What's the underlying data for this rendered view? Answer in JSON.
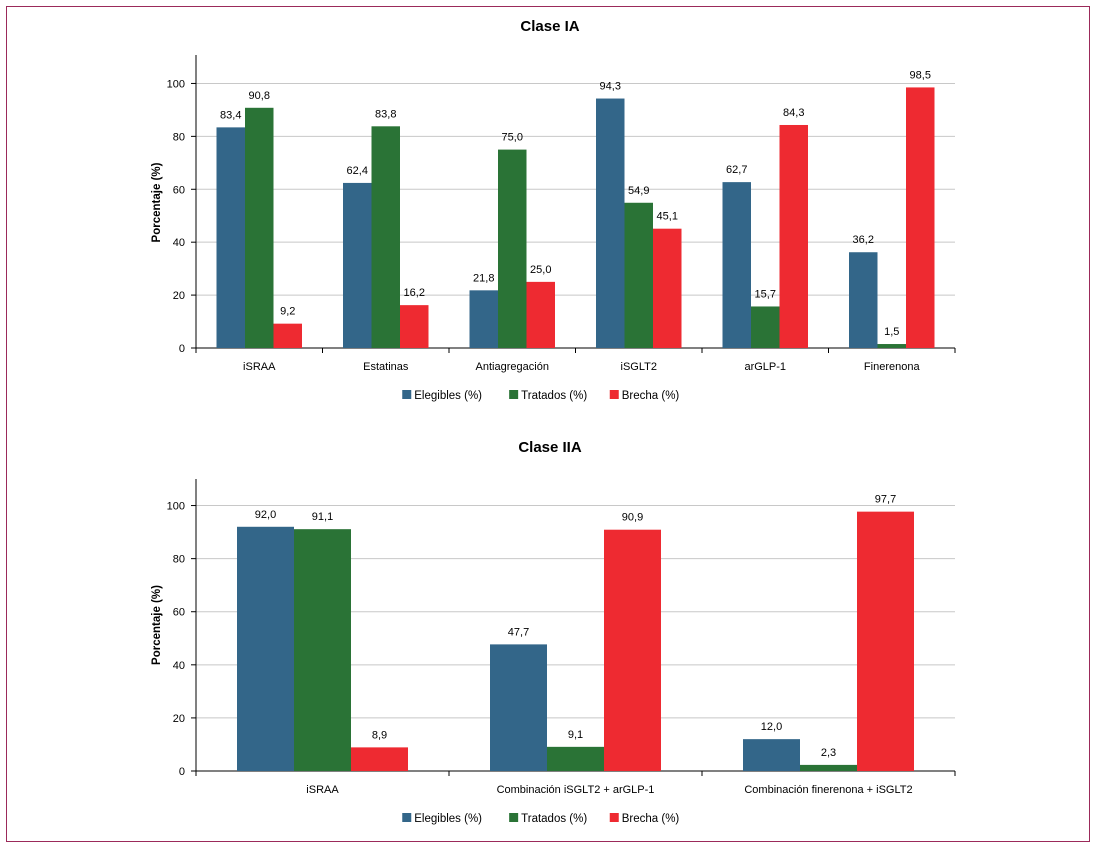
{
  "chart_data": [
    {
      "type": "bar",
      "title": "Clase IA",
      "ylabel": "Porcentaje (%)",
      "xlabel": "",
      "ylim": [
        0,
        110
      ],
      "yticks": [
        0,
        20,
        40,
        60,
        80,
        100
      ],
      "grid": true,
      "legend_position": "bottom",
      "categories": [
        "iSRAA",
        "Estatinas",
        "Antiagregación",
        "iSGLT2",
        "arGLP-1",
        "Finerenona"
      ],
      "series": [
        {
          "name": "Elegibles (%)",
          "color": "#336689",
          "values": [
            83.4,
            62.4,
            21.8,
            94.3,
            62.7,
            36.2
          ],
          "labels": [
            "83,4",
            "62,4",
            "21,8",
            "94,3",
            "62,7",
            "36,2"
          ]
        },
        {
          "name": "Tratados (%)",
          "color": "#2a7336",
          "values": [
            90.8,
            83.8,
            75.0,
            54.9,
            15.7,
            1.5
          ],
          "labels": [
            "90,8",
            "83,8",
            "75,0",
            "54,9",
            "15,7",
            "1,5"
          ]
        },
        {
          "name": "Brecha (%)",
          "color": "#ee2a31",
          "values": [
            9.2,
            16.2,
            25.0,
            45.1,
            84.3,
            98.5
          ],
          "labels": [
            "9,2",
            "16,2",
            "25,0",
            "45,1",
            "84,3",
            "98,5"
          ]
        }
      ]
    },
    {
      "type": "bar",
      "title": "Clase IIA",
      "ylabel": "Porcentaje (%)",
      "xlabel": "",
      "ylim": [
        0,
        110
      ],
      "yticks": [
        0,
        20,
        40,
        60,
        80,
        100
      ],
      "grid": true,
      "legend_position": "bottom",
      "categories": [
        "iSRAA",
        "Combinación iSGLT2 + arGLP-1",
        "Combinación finerenona + iSGLT2"
      ],
      "series": [
        {
          "name": "Elegibles (%)",
          "color": "#336689",
          "values": [
            92.0,
            47.7,
            12.0
          ],
          "labels": [
            "92,0",
            "47,7",
            "12,0"
          ]
        },
        {
          "name": "Tratados (%)",
          "color": "#2a7336",
          "values": [
            91.1,
            9.1,
            2.3
          ],
          "labels": [
            "91,1",
            "9,1",
            "2,3"
          ]
        },
        {
          "name": "Brecha (%)",
          "color": "#ee2a31",
          "values": [
            8.9,
            90.9,
            97.7
          ],
          "labels": [
            "8,9",
            "90,9",
            "97,7"
          ]
        }
      ]
    }
  ]
}
